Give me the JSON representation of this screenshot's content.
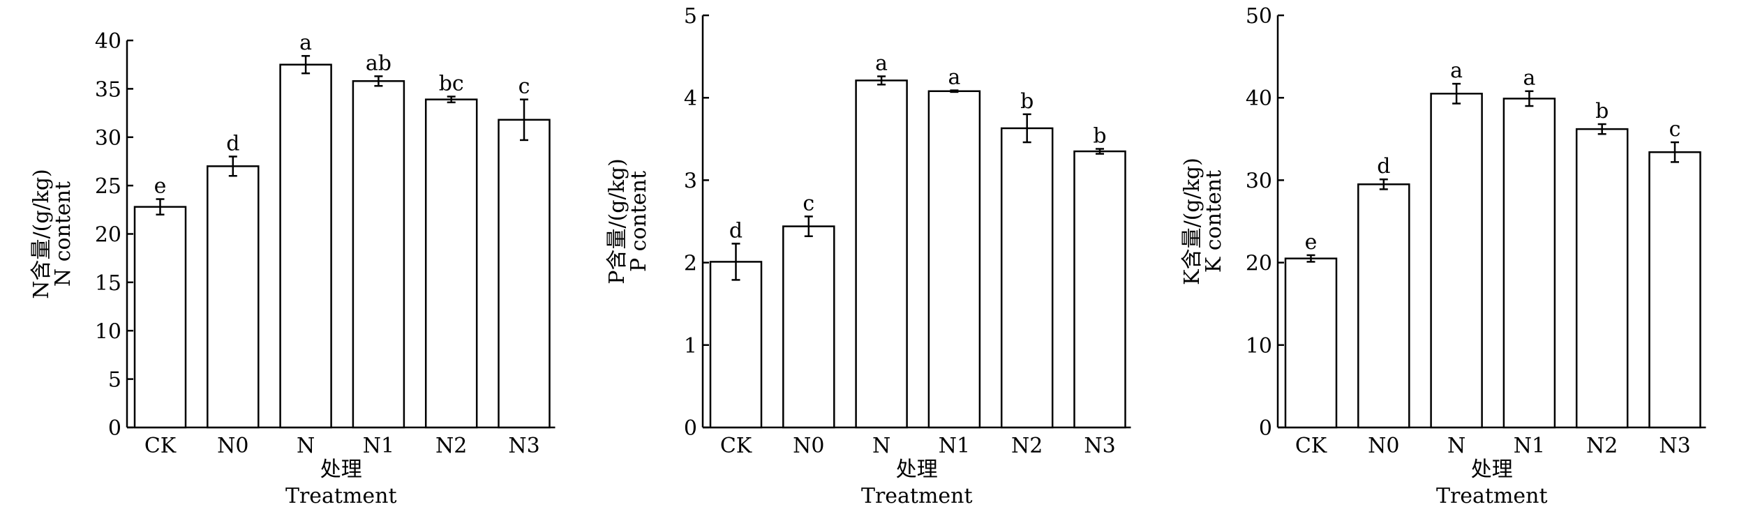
{
  "chart_data": [
    {
      "type": "bar",
      "categories": [
        "CK",
        "N0",
        "N",
        "N1",
        "N2",
        "N3"
      ],
      "values": [
        22.8,
        27.0,
        37.5,
        35.8,
        33.9,
        31.8
      ],
      "errors": [
        0.8,
        1.0,
        0.9,
        0.5,
        0.3,
        2.1
      ],
      "labels": [
        "e",
        "d",
        "a",
        "ab",
        "bc",
        "c"
      ],
      "ylim": [
        0,
        40
      ],
      "yticks": [
        "0",
        "5",
        "10",
        "15",
        "20",
        "25",
        "30",
        "35",
        "40"
      ],
      "ylabel": "N含量/(g/kg)",
      "ylabel2": "N content",
      "xlabel": "处理",
      "xlabel2": "Treatment"
    },
    {
      "type": "bar",
      "categories": [
        "CK",
        "N0",
        "N",
        "N1",
        "N2",
        "N3"
      ],
      "values": [
        2.01,
        2.44,
        4.21,
        4.08,
        3.63,
        3.35
      ],
      "errors": [
        0.22,
        0.12,
        0.05,
        0.01,
        0.17,
        0.03
      ],
      "labels": [
        "d",
        "c",
        "a",
        "a",
        "b",
        "b"
      ],
      "ylim": [
        0,
        5
      ],
      "yticks": [
        "0",
        "1",
        "2",
        "3",
        "4",
        "5"
      ],
      "ylabel": "P含量/(g/kg)",
      "ylabel2": "P content",
      "xlabel": "处理",
      "xlabel2": "Treatment"
    },
    {
      "type": "bar",
      "categories": [
        "CK",
        "N0",
        "N",
        "N1",
        "N2",
        "N3"
      ],
      "values": [
        20.5,
        29.5,
        40.5,
        39.9,
        36.2,
        33.4
      ],
      "errors": [
        0.4,
        0.6,
        1.2,
        0.9,
        0.6,
        1.2
      ],
      "labels": [
        "e",
        "d",
        "a",
        "a",
        "b",
        "c"
      ],
      "ylim": [
        0,
        50
      ],
      "yticks": [
        "0",
        "10",
        "20",
        "30",
        "40",
        "50"
      ],
      "ylabel": "K含量/(g/kg)",
      "ylabel2": "K content",
      "xlabel": "处理",
      "xlabel2": "Treatment"
    }
  ]
}
